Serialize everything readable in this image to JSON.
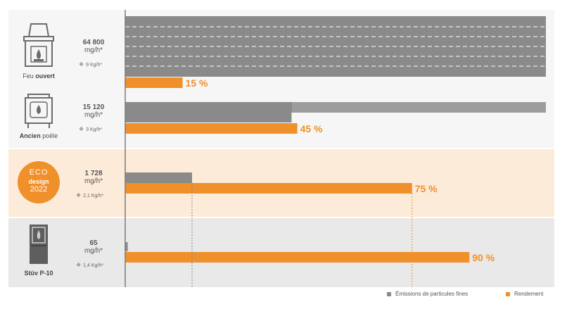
{
  "rows": [
    {
      "label_bold": "",
      "label_rest": "Feu ",
      "label_bold2": "ouvert",
      "emission_value": "64 800",
      "emission_unit": "mg/h*",
      "wood": "9 Kg/h*"
    },
    {
      "label_bold": "Ancien",
      "label_rest": " poêle",
      "label_bold2": "",
      "emission_value": "15 120",
      "emission_unit": "mg/h*",
      "wood": "3 Kg/h*"
    },
    {
      "label_bold": "",
      "label_rest": "",
      "label_bold2": "",
      "emission_value": "1 728",
      "emission_unit": "mg/h*",
      "wood": "2,1 Kg/h*"
    },
    {
      "label_bold": "Stûv P-10",
      "label_rest": "",
      "label_bold2": "",
      "emission_value": "65",
      "emission_unit": "mg/h*",
      "wood": "1,4 Kg/h*"
    }
  ],
  "eco_badge": {
    "line1": "ECO",
    "line2": "design",
    "line3": "2022"
  },
  "legend": {
    "emissions": "Émissions de particules fines",
    "rendement": "Rendement"
  },
  "colors": {
    "grey_bar": "#8a8a8a",
    "orange": "#f0902a",
    "row_bg_grey": "#efefef",
    "row_bg_light": "#f6f6f6",
    "row_bg_orange": "#fdebd9",
    "icon": "#6b6b6b"
  },
  "chart_data": {
    "type": "bar",
    "orientation": "horizontal",
    "categories": [
      "Feu ouvert",
      "Ancien poêle",
      "ECO design 2022",
      "Stûv P-10"
    ],
    "series": [
      {
        "name": "Émissions de particules fines",
        "values": [
          64800,
          15120,
          1728,
          65
        ],
        "unit": "mg/h*",
        "note": "first two bars are broken (exceed the scale)"
      },
      {
        "name": "Rendement",
        "values": [
          15,
          45,
          75,
          90
        ],
        "unit": "%",
        "data_labels": [
          "15 %",
          "45 %",
          "75 %",
          "90 %"
        ]
      }
    ],
    "wood_consumption": [
      "9 Kg/h*",
      "3 Kg/h*",
      "2,1 Kg/h*",
      "1,4 Kg/h*"
    ],
    "legend_position": "bottom-right",
    "grid": false
  }
}
